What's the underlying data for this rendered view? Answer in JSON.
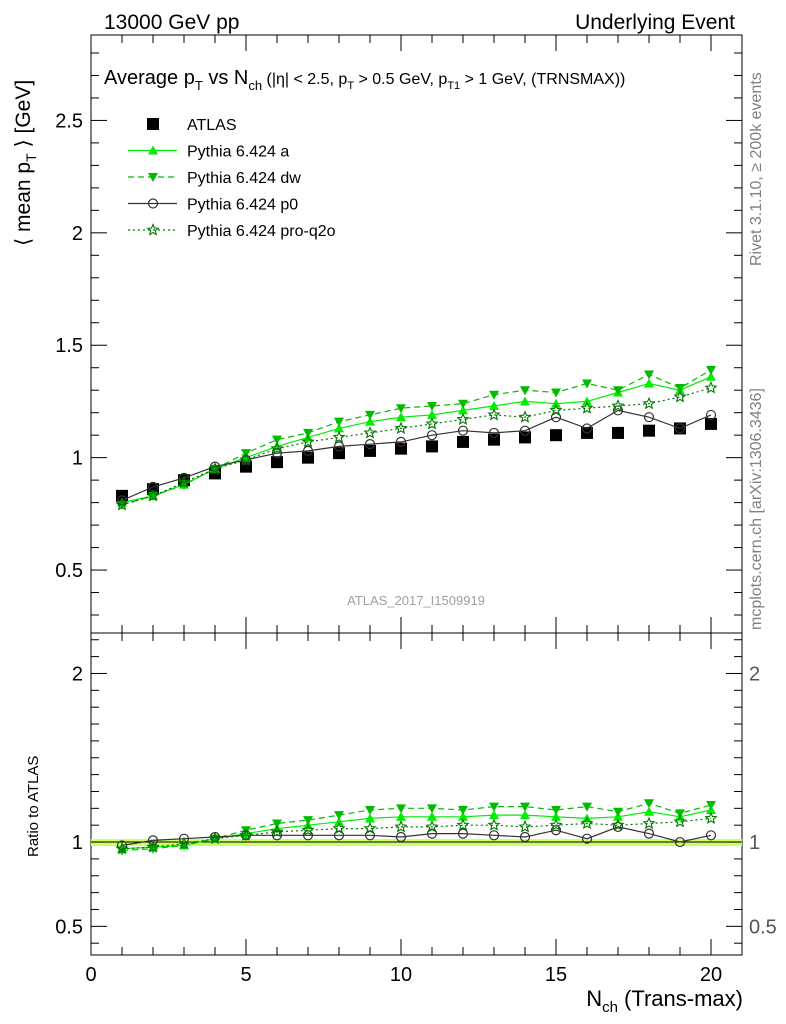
{
  "header": {
    "energy_label": "13000 GeV pp",
    "process_label": "Underlying Event"
  },
  "side_labels": {
    "rivet": "Rivet 3.1.10, ≥ 200k events",
    "mcplots": "mcplots.cern.ch [arXiv:1306.3436]"
  },
  "analysis_id": "ATLAS_2017_I1509919",
  "colors": {
    "atlas": "#000000",
    "pythia_a": "#00ee00",
    "pythia_dw": "#00bb00",
    "pythia_p0": "#333333",
    "pythia_proq2o": "#007700",
    "ratio_band": "#ccff66"
  },
  "chart_data": [
    {
      "type": "scatter",
      "title": "Average p_T vs N_ch (|η| < 2.5, p_T > 0.5 GeV, p_T1 > 1 GeV, (TRNSMAX))",
      "ylabel": "⟨ mean p_T ⟩ [GeV]",
      "xlabel": "N_ch (Trans-max)",
      "xlim": [
        0,
        21
      ],
      "ylim": [
        0.22,
        2.88
      ],
      "yticks": [
        0.5,
        1,
        1.5,
        2,
        2.5
      ],
      "xticks": [
        0,
        5,
        10,
        15,
        20
      ],
      "legend_position": "top-left",
      "x": [
        1,
        2,
        3,
        4,
        5,
        6,
        7,
        8,
        9,
        10,
        11,
        12,
        13,
        14,
        15,
        16,
        17,
        18,
        19,
        20
      ],
      "series": [
        {
          "name": "ATLAS",
          "key": "atlas",
          "marker": "square",
          "line": "none",
          "values": [
            0.83,
            0.86,
            0.9,
            0.93,
            0.96,
            0.98,
            1.0,
            1.02,
            1.03,
            1.04,
            1.05,
            1.07,
            1.08,
            1.09,
            1.1,
            1.11,
            1.11,
            1.12,
            1.13,
            1.15
          ]
        },
        {
          "name": "Pythia 6.424 a",
          "key": "pythia_a",
          "marker": "triangle-up",
          "line": "solid",
          "values": [
            0.8,
            0.83,
            0.88,
            0.95,
            1.0,
            1.05,
            1.09,
            1.13,
            1.16,
            1.18,
            1.19,
            1.21,
            1.23,
            1.25,
            1.24,
            1.25,
            1.29,
            1.33,
            1.3,
            1.36
          ]
        },
        {
          "name": "Pythia 6.424 dw",
          "key": "pythia_dw",
          "marker": "triangle-down",
          "line": "dashed",
          "values": [
            0.79,
            0.83,
            0.88,
            0.95,
            1.02,
            1.08,
            1.11,
            1.16,
            1.19,
            1.22,
            1.23,
            1.24,
            1.28,
            1.3,
            1.29,
            1.33,
            1.3,
            1.37,
            1.31,
            1.39
          ]
        },
        {
          "name": "Pythia 6.424 p0",
          "key": "pythia_p0",
          "marker": "circle-open",
          "line": "solid",
          "values": [
            0.81,
            0.87,
            0.91,
            0.96,
            0.99,
            1.02,
            1.03,
            1.05,
            1.06,
            1.07,
            1.1,
            1.12,
            1.11,
            1.12,
            1.18,
            1.13,
            1.21,
            1.18,
            1.13,
            1.19
          ]
        },
        {
          "name": "Pythia 6.424 pro-q2o",
          "key": "pythia_proq2o",
          "marker": "star-open",
          "line": "dotted",
          "values": [
            0.79,
            0.83,
            0.89,
            0.95,
            0.99,
            1.04,
            1.07,
            1.09,
            1.11,
            1.13,
            1.15,
            1.17,
            1.19,
            1.18,
            1.21,
            1.22,
            1.23,
            1.24,
            1.27,
            1.31
          ]
        }
      ]
    },
    {
      "type": "scatter",
      "ylabel": "Ratio to ATLAS",
      "xlabel": "N_ch (Trans-max)",
      "xlim": [
        0,
        21
      ],
      "ylim": [
        0.33,
        2.24
      ],
      "yticks": [
        0.5,
        1,
        2
      ],
      "xticks": [
        0,
        5,
        10,
        15,
        20
      ],
      "x": [
        1,
        2,
        3,
        4,
        5,
        6,
        7,
        8,
        9,
        10,
        11,
        12,
        13,
        14,
        15,
        16,
        17,
        18,
        19,
        20
      ],
      "series": [
        {
          "name": "Pythia 6.424 a",
          "key": "pythia_a",
          "marker": "triangle-up",
          "line": "solid",
          "values": [
            0.96,
            0.97,
            0.98,
            1.02,
            1.05,
            1.08,
            1.1,
            1.12,
            1.14,
            1.15,
            1.15,
            1.15,
            1.16,
            1.16,
            1.15,
            1.14,
            1.15,
            1.18,
            1.15,
            1.19
          ]
        },
        {
          "name": "Pythia 6.424 dw",
          "key": "pythia_dw",
          "marker": "triangle-down",
          "line": "dashed",
          "values": [
            0.95,
            0.96,
            0.98,
            1.02,
            1.07,
            1.11,
            1.13,
            1.16,
            1.19,
            1.2,
            1.2,
            1.19,
            1.21,
            1.21,
            1.19,
            1.21,
            1.18,
            1.23,
            1.17,
            1.22
          ]
        },
        {
          "name": "Pythia 6.424 p0",
          "key": "pythia_p0",
          "marker": "circle-open",
          "line": "solid",
          "values": [
            0.98,
            1.01,
            1.02,
            1.03,
            1.04,
            1.04,
            1.04,
            1.04,
            1.04,
            1.03,
            1.05,
            1.05,
            1.04,
            1.03,
            1.07,
            1.02,
            1.09,
            1.05,
            1.0,
            1.04
          ]
        },
        {
          "name": "Pythia 6.424 pro-q2o",
          "key": "pythia_proq2o",
          "marker": "star-open",
          "line": "dotted",
          "values": [
            0.96,
            0.97,
            0.99,
            1.02,
            1.04,
            1.06,
            1.07,
            1.08,
            1.08,
            1.09,
            1.09,
            1.1,
            1.1,
            1.09,
            1.1,
            1.11,
            1.1,
            1.11,
            1.12,
            1.14
          ]
        }
      ]
    }
  ]
}
